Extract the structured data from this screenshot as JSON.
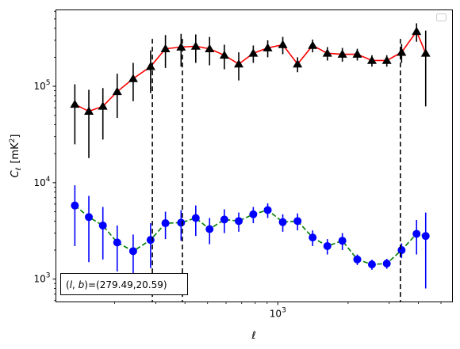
{
  "chart_data": {
    "type": "scatter",
    "xlabel": "ℓ",
    "ylabel_main": "C",
    "ylabel_sub": "ℓ",
    "ylabel_unit_open": "[mK",
    "ylabel_unit_sup": "2",
    "ylabel_unit_close": "]",
    "xscale": "log",
    "yscale": "log",
    "xlim": [
      112,
      5600
    ],
    "ylim": [
      580,
      620000
    ],
    "x_ticks": [
      {
        "value": 1000,
        "base": "10",
        "exp": "3"
      }
    ],
    "y_ticks": [
      {
        "value": 1000,
        "base": "10",
        "exp": "3"
      },
      {
        "value": 10000,
        "base": "10",
        "exp": "4"
      },
      {
        "value": 100000,
        "base": "10",
        "exp": "5"
      }
    ],
    "grid": false,
    "legend": {
      "placement": "upper right",
      "entries": []
    },
    "annotation": "(l, b)=(279.49,20.59)",
    "annotation_parts": {
      "l": "l",
      "b": "b",
      "equals_value": "=(279.49,20.59)"
    },
    "vlines": [
      290,
      390,
      3350
    ],
    "series": [
      {
        "marker": "triangle",
        "marker_color": "#000000",
        "line_color": "#ff0000",
        "line_style": "solid",
        "points": [
          {
            "x": 135,
            "y": 65000,
            "lo": 25000,
            "hi": 105000
          },
          {
            "x": 155,
            "y": 55000,
            "lo": 18000,
            "hi": 92000
          },
          {
            "x": 178,
            "y": 62000,
            "lo": 28000,
            "hi": 96000
          },
          {
            "x": 205,
            "y": 88000,
            "lo": 47000,
            "hi": 135000
          },
          {
            "x": 240,
            "y": 120000,
            "lo": 70000,
            "hi": 175000
          },
          {
            "x": 285,
            "y": 160000,
            "lo": 85000,
            "hi": 235000
          },
          {
            "x": 330,
            "y": 245000,
            "lo": 155000,
            "hi": 340000
          },
          {
            "x": 385,
            "y": 255000,
            "lo": 160000,
            "hi": 350000
          },
          {
            "x": 445,
            "y": 260000,
            "lo": 175000,
            "hi": 345000
          },
          {
            "x": 510,
            "y": 245000,
            "lo": 165000,
            "hi": 325000
          },
          {
            "x": 590,
            "y": 210000,
            "lo": 150000,
            "hi": 270000
          },
          {
            "x": 680,
            "y": 170000,
            "lo": 115000,
            "hi": 225000
          },
          {
            "x": 785,
            "y": 220000,
            "lo": 175000,
            "hi": 265000
          },
          {
            "x": 905,
            "y": 250000,
            "lo": 200000,
            "hi": 300000
          },
          {
            "x": 1050,
            "y": 270000,
            "lo": 215000,
            "hi": 325000
          },
          {
            "x": 1215,
            "y": 170000,
            "lo": 140000,
            "hi": 200000
          },
          {
            "x": 1410,
            "y": 265000,
            "lo": 225000,
            "hi": 305000
          },
          {
            "x": 1630,
            "y": 220000,
            "lo": 185000,
            "hi": 255000
          },
          {
            "x": 1890,
            "y": 215000,
            "lo": 180000,
            "hi": 250000
          },
          {
            "x": 2190,
            "y": 215000,
            "lo": 185000,
            "hi": 245000
          },
          {
            "x": 2530,
            "y": 185000,
            "lo": 160000,
            "hi": 210000
          },
          {
            "x": 2930,
            "y": 185000,
            "lo": 160000,
            "hi": 210000
          },
          {
            "x": 3390,
            "y": 225000,
            "lo": 175000,
            "hi": 275000
          },
          {
            "x": 3930,
            "y": 370000,
            "lo": 290000,
            "hi": 450000
          },
          {
            "x": 4300,
            "y": 220000,
            "lo": 62000,
            "hi": 378000
          }
        ]
      },
      {
        "marker": "circle",
        "marker_color": "#0000ff",
        "line_color": "#008000",
        "line_style": "dashed",
        "points": [
          {
            "x": 135,
            "y": 5800,
            "lo": 2200,
            "hi": 9400
          },
          {
            "x": 155,
            "y": 4400,
            "lo": 1500,
            "hi": 7300
          },
          {
            "x": 178,
            "y": 3600,
            "lo": 1600,
            "hi": 5600
          },
          {
            "x": 205,
            "y": 2400,
            "lo": 1200,
            "hi": 3600
          },
          {
            "x": 240,
            "y": 1950,
            "lo": 1000,
            "hi": 2900
          },
          {
            "x": 285,
            "y": 2550,
            "lo": 1300,
            "hi": 3800
          },
          {
            "x": 330,
            "y": 3800,
            "lo": 2600,
            "hi": 5000
          },
          {
            "x": 385,
            "y": 3850,
            "lo": 2500,
            "hi": 5200
          },
          {
            "x": 445,
            "y": 4300,
            "lo": 2800,
            "hi": 5800
          },
          {
            "x": 510,
            "y": 3300,
            "lo": 2300,
            "hi": 4300
          },
          {
            "x": 590,
            "y": 4150,
            "lo": 3000,
            "hi": 5300
          },
          {
            "x": 680,
            "y": 4000,
            "lo": 3100,
            "hi": 4900
          },
          {
            "x": 785,
            "y": 4700,
            "lo": 3800,
            "hi": 5600
          },
          {
            "x": 905,
            "y": 5200,
            "lo": 4300,
            "hi": 6100
          },
          {
            "x": 1050,
            "y": 3900,
            "lo": 3100,
            "hi": 4700
          },
          {
            "x": 1215,
            "y": 4000,
            "lo": 3200,
            "hi": 4800
          },
          {
            "x": 1410,
            "y": 2700,
            "lo": 2200,
            "hi": 3200
          },
          {
            "x": 1630,
            "y": 2200,
            "lo": 1800,
            "hi": 2600
          },
          {
            "x": 1890,
            "y": 2500,
            "lo": 2000,
            "hi": 3000
          },
          {
            "x": 2190,
            "y": 1600,
            "lo": 1400,
            "hi": 1800
          },
          {
            "x": 2530,
            "y": 1420,
            "lo": 1250,
            "hi": 1590
          },
          {
            "x": 2930,
            "y": 1450,
            "lo": 1280,
            "hi": 1620
          },
          {
            "x": 3390,
            "y": 2000,
            "lo": 1650,
            "hi": 2350
          },
          {
            "x": 3930,
            "y": 2950,
            "lo": 1800,
            "hi": 4100
          },
          {
            "x": 4300,
            "y": 2800,
            "lo": 800,
            "hi": 4900
          }
        ]
      }
    ]
  }
}
